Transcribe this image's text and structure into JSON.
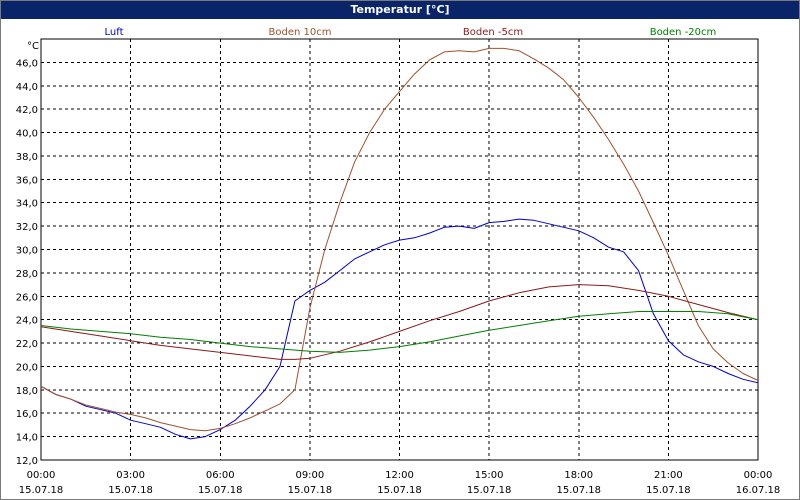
{
  "window": {
    "title": "Temperatur [°C]"
  },
  "chart_data": {
    "type": "line",
    "title": "Temperatur [°C]",
    "ylabel": "°C",
    "xlabel": "",
    "ylim": [
      12,
      48
    ],
    "y_ticks": [
      12,
      14,
      16,
      18,
      20,
      22,
      24,
      26,
      28,
      30,
      32,
      34,
      36,
      38,
      40,
      42,
      44,
      46
    ],
    "y_tick_labels": [
      "12,0",
      "14,0",
      "16,0",
      "18,0",
      "20,0",
      "22,0",
      "24,0",
      "26,0",
      "28,0",
      "30,0",
      "32,0",
      "34,0",
      "36,0",
      "38,0",
      "40,0",
      "42,0",
      "44,0",
      "46,0"
    ],
    "x_unit": "hours since 15.07.18 00:00",
    "xlim": [
      0,
      24
    ],
    "x_ticks": [
      0,
      3,
      6,
      9,
      12,
      15,
      18,
      21,
      24
    ],
    "x_tick_labels": [
      {
        "time": "00:00",
        "date": "15.07.18"
      },
      {
        "time": "03:00",
        "date": "15.07.18"
      },
      {
        "time": "06:00",
        "date": "15.07.18"
      },
      {
        "time": "09:00",
        "date": "15.07.18"
      },
      {
        "time": "12:00",
        "date": "15.07.18"
      },
      {
        "time": "15:00",
        "date": "15.07.18"
      },
      {
        "time": "18:00",
        "date": "15.07.18"
      },
      {
        "time": "21:00",
        "date": "15.07.18"
      },
      {
        "time": "00:00",
        "date": "16.07.18"
      }
    ],
    "grid": true,
    "legend_position": "top",
    "series": [
      {
        "name": "Luft",
        "color": "#0000cc",
        "x": [
          0,
          0.5,
          1,
          1.5,
          2,
          2.5,
          3,
          3.5,
          4,
          4.5,
          5,
          5.5,
          6,
          6.5,
          7,
          7.5,
          8,
          8.5,
          9,
          9.5,
          10,
          10.5,
          11,
          11.5,
          12,
          12.5,
          13,
          13.5,
          14,
          14.5,
          15,
          15.5,
          16,
          16.5,
          17,
          17.5,
          18,
          18.5,
          19,
          19.5,
          20,
          20.5,
          21,
          21.5,
          22,
          22.5,
          23,
          23.5,
          24
        ],
        "y": [
          18.3,
          17.6,
          17.2,
          16.6,
          16.3,
          16.0,
          15.4,
          15.1,
          14.8,
          14.2,
          13.8,
          14.0,
          14.6,
          15.4,
          16.6,
          18.0,
          20.0,
          25.6,
          26.5,
          27.2,
          28.2,
          29.2,
          29.8,
          30.4,
          30.8,
          31.0,
          31.4,
          31.9,
          32.0,
          31.8,
          32.3,
          32.4,
          32.6,
          32.5,
          32.2,
          31.9,
          31.6,
          31.0,
          30.2,
          29.8,
          28.2,
          24.5,
          22.2,
          21.0,
          20.4,
          20.0,
          19.4,
          18.9,
          18.6
        ]
      },
      {
        "name": "Boden 10cm",
        "color": "#a0522d",
        "x": [
          0,
          0.5,
          1,
          1.5,
          2,
          2.5,
          3,
          3.5,
          4,
          4.5,
          5,
          5.5,
          6,
          6.5,
          7,
          7.5,
          8,
          8.5,
          9,
          9.5,
          10,
          10.5,
          11,
          11.5,
          12,
          12.5,
          13,
          13.5,
          14,
          14.5,
          15,
          15.5,
          16,
          16.5,
          17,
          17.5,
          18,
          18.5,
          19,
          19.5,
          20,
          20.5,
          21,
          21.5,
          22,
          22.5,
          23,
          23.5,
          24
        ],
        "y": [
          18.3,
          17.6,
          17.2,
          16.7,
          16.4,
          16.1,
          15.9,
          15.6,
          15.2,
          14.9,
          14.6,
          14.5,
          14.7,
          15.1,
          15.6,
          16.2,
          16.8,
          18.0,
          25.0,
          30.0,
          34.0,
          37.5,
          40.0,
          42.0,
          43.5,
          45.0,
          46.2,
          46.9,
          47.0,
          46.9,
          47.2,
          47.2,
          47.0,
          46.3,
          45.5,
          44.5,
          43.0,
          41.3,
          39.4,
          37.3,
          35.0,
          32.3,
          29.5,
          26.5,
          23.5,
          21.5,
          20.3,
          19.4,
          18.8
        ]
      },
      {
        "name": "Boden -5cm",
        "color": "#8b1a1a",
        "x": [
          0,
          1,
          2,
          3,
          4,
          5,
          6,
          7,
          8,
          8.5,
          9,
          10,
          11,
          12,
          13,
          14,
          15,
          16,
          17,
          18,
          19,
          20,
          21,
          22,
          23,
          24
        ],
        "y": [
          23.4,
          23.0,
          22.6,
          22.2,
          21.8,
          21.5,
          21.2,
          20.9,
          20.6,
          20.6,
          20.7,
          21.3,
          22.1,
          23.0,
          23.9,
          24.7,
          25.6,
          26.3,
          26.8,
          27.0,
          26.9,
          26.5,
          26.0,
          25.3,
          24.6,
          24.0
        ]
      },
      {
        "name": "Boden -20cm",
        "color": "#008000",
        "x": [
          0,
          1,
          2,
          3,
          4,
          5,
          6,
          7,
          8,
          9,
          10,
          11,
          12,
          13,
          14,
          15,
          16,
          17,
          18,
          19,
          20,
          21,
          22,
          23,
          24
        ],
        "y": [
          23.5,
          23.2,
          23.0,
          22.8,
          22.5,
          22.3,
          22.0,
          21.7,
          21.5,
          21.3,
          21.2,
          21.4,
          21.7,
          22.1,
          22.6,
          23.1,
          23.5,
          23.9,
          24.3,
          24.5,
          24.7,
          24.7,
          24.7,
          24.5,
          24.0
        ]
      }
    ]
  }
}
